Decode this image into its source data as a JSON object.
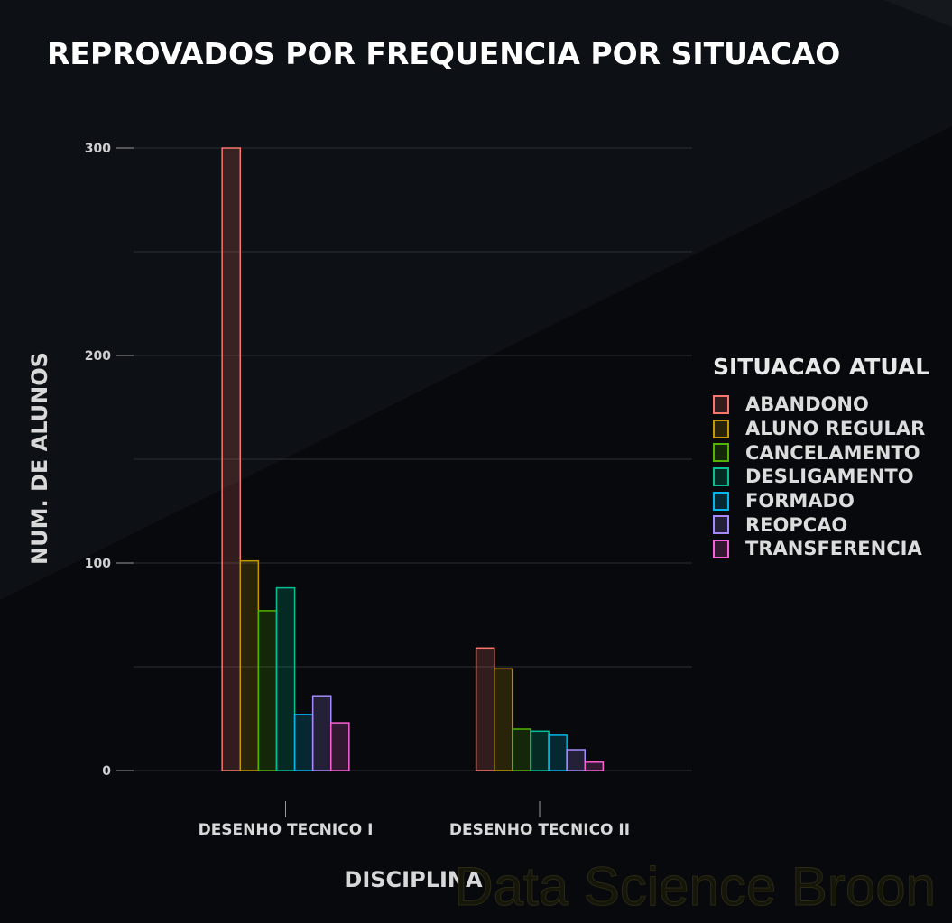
{
  "chart_data": {
    "type": "bar",
    "title": "REPROVADOS POR FREQUENCIA POR SITUACAO",
    "xlabel": "DISCIPLINA",
    "ylabel": "NUM. DE ALUNOS",
    "categories": [
      "DESENHO TECNICO I",
      "DESENHO TECNICO II"
    ],
    "ylim": [
      0,
      300
    ],
    "yticks": [
      0,
      100,
      200,
      300
    ],
    "grid": true,
    "legend_title": "SITUACAO ATUAL",
    "legend_position": "right",
    "series": [
      {
        "name": "ABANDONO",
        "color": "#f8766d",
        "values": [
          300,
          59
        ]
      },
      {
        "name": "ALUNO REGULAR",
        "color": "#c49a00",
        "values": [
          101,
          49
        ]
      },
      {
        "name": "CANCELAMENTO",
        "color": "#53b400",
        "values": [
          77,
          20
        ]
      },
      {
        "name": "DESLIGAMENTO",
        "color": "#00c094",
        "values": [
          88,
          19
        ]
      },
      {
        "name": "FORMADO",
        "color": "#00b6eb",
        "values": [
          27,
          17
        ]
      },
      {
        "name": "REOPCAO",
        "color": "#a58aff",
        "values": [
          36,
          10
        ]
      },
      {
        "name": "TRANSFERENCIA",
        "color": "#fb61d7",
        "values": [
          23,
          4
        ]
      }
    ]
  },
  "watermark": "Data Science Broon"
}
